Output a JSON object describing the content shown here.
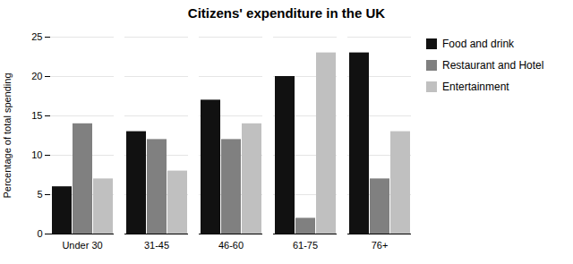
{
  "chart_data": {
    "type": "bar",
    "title": "Citizens' expenditure in the UK",
    "ylabel": "Percentage of total spending",
    "categories": [
      "Under 30",
      "31-45",
      "46-60",
      "61-75",
      "76+"
    ],
    "series": [
      {
        "name": "Food and drink",
        "color": "#111111",
        "values": [
          6,
          13,
          17,
          20,
          23
        ]
      },
      {
        "name": "Restaurant and Hotel",
        "color": "#808080",
        "values": [
          14,
          12,
          12,
          2,
          7
        ]
      },
      {
        "name": "Entertainment",
        "color": "#c0c0c0",
        "values": [
          7,
          8,
          14,
          23,
          13
        ]
      }
    ],
    "ylim": [
      0,
      25
    ],
    "yticks": [
      0,
      5,
      10,
      15,
      20,
      25
    ],
    "grid": true,
    "legend": "right"
  }
}
